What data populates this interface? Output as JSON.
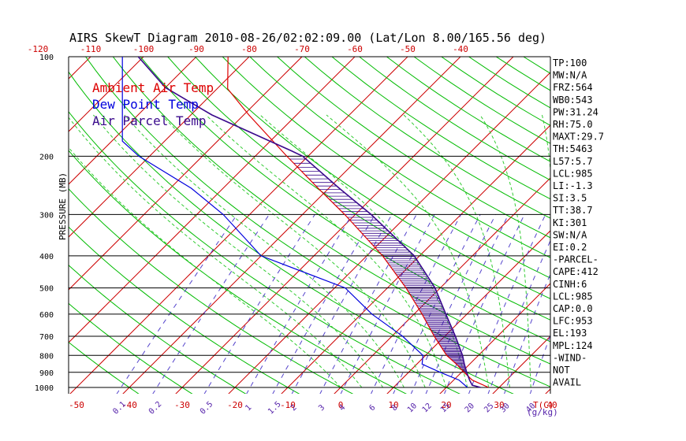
{
  "chart_data": {
    "type": "line",
    "title": "AIRS SkewT Diagram 2010-08-26/02:02:09.00 (Lat/Lon 8.00/165.56 deg)",
    "ylabel": "PRESSURE (MB)",
    "xlabel": "T(C)",
    "mixing_ratio_unit": "(g/kg)",
    "pressure_ticks": [
      100,
      200,
      300,
      400,
      500,
      600,
      700,
      800,
      900,
      1000
    ],
    "bottom_temperature_ticks": [
      -50,
      -40,
      -30,
      -20,
      -10,
      0,
      10,
      20,
      30,
      40
    ],
    "top_temperature_ticks": [
      -120,
      -110,
      -100,
      -90,
      -80,
      -70,
      -60,
      -50,
      -40
    ],
    "mixing_ratio_labels": [
      "0.1",
      "0.2",
      "0.5",
      "1",
      "1.5",
      "2",
      "3",
      "4",
      "6",
      "8",
      "10",
      "12",
      "15",
      "20",
      "25",
      "30",
      "40"
    ],
    "legend": [
      "Ambient Air Temp",
      "Dew Point Temp",
      "Air Parcel Temp"
    ],
    "colors": {
      "ambient": "#dd0000",
      "dewpoint": "#0000dd",
      "parcel": "#3a0a8c",
      "isotherm": "#cc0000",
      "dry_adiabat": "#00bb00",
      "moist_adiabat": "#33cc33",
      "mixing_ratio": "#5544cc",
      "isobar": "#000000",
      "label_color": "#cc0000",
      "mixing_label_color": "#5522aa"
    },
    "series": [
      {
        "name": "Ambient Air Temp",
        "points": [
          {
            "p": 1000,
            "t": 28
          },
          {
            "p": 950,
            "t": 23.5
          },
          {
            "p": 900,
            "t": 20.5
          },
          {
            "p": 850,
            "t": 17.5
          },
          {
            "p": 800,
            "t": 14
          },
          {
            "p": 700,
            "t": 8
          },
          {
            "p": 600,
            "t": 1.5
          },
          {
            "p": 500,
            "t": -6.5
          },
          {
            "p": 400,
            "t": -17
          },
          {
            "p": 300,
            "t": -32
          },
          {
            "p": 250,
            "t": -42
          },
          {
            "p": 200,
            "t": -54
          },
          {
            "p": 150,
            "t": -69
          },
          {
            "p": 125,
            "t": -78
          },
          {
            "p": 100,
            "t": -84
          }
        ]
      },
      {
        "name": "Dew Point Temp",
        "points": [
          {
            "p": 1000,
            "t": 24
          },
          {
            "p": 950,
            "t": 21
          },
          {
            "p": 900,
            "t": 16
          },
          {
            "p": 850,
            "t": 11
          },
          {
            "p": 800,
            "t": 9.5
          },
          {
            "p": 700,
            "t": 2
          },
          {
            "p": 600,
            "t": -8
          },
          {
            "p": 500,
            "t": -18
          },
          {
            "p": 400,
            "t": -40
          },
          {
            "p": 300,
            "t": -55
          },
          {
            "p": 250,
            "t": -66
          },
          {
            "p": 200,
            "t": -82
          },
          {
            "p": 180,
            "t": -88
          },
          {
            "p": 100,
            "t": -104
          }
        ]
      },
      {
        "name": "Air Parcel Temp",
        "points": [
          {
            "p": 1000,
            "t": 26.5
          },
          {
            "p": 985,
            "t": 24.5
          },
          {
            "p": 950,
            "t": 23
          },
          {
            "p": 900,
            "t": 21
          },
          {
            "p": 850,
            "t": 19
          },
          {
            "p": 800,
            "t": 17
          },
          {
            "p": 700,
            "t": 12
          },
          {
            "p": 600,
            "t": 6
          },
          {
            "p": 500,
            "t": -1
          },
          {
            "p": 400,
            "t": -11
          },
          {
            "p": 300,
            "t": -27
          },
          {
            "p": 250,
            "t": -38
          },
          {
            "p": 200,
            "t": -51
          },
          {
            "p": 193,
            "t": -54
          },
          {
            "p": 150,
            "t": -76
          },
          {
            "p": 124,
            "t": -90
          },
          {
            "p": 100,
            "t": -101
          }
        ]
      }
    ],
    "indices": [
      "TP:100",
      "MW:N/A",
      "FRZ:564",
      "WB0:543",
      "PW:31.24",
      "RH:75.0",
      "MAXT:29.7",
      "TH:5463",
      "L57:5.7",
      "LCL:985",
      "LI:-1.3",
      "SI:3.5",
      "TT:38.7",
      "KI:301",
      "SW:N/A",
      "EI:0.2",
      "-PARCEL-",
      "CAPE:412",
      "CINH:6",
      "LCL:985",
      "CAP:0.0",
      "LFC:953",
      "EL:193",
      "MPL:124",
      "-WIND-",
      "NOT",
      "AVAIL"
    ],
    "grid": true
  }
}
